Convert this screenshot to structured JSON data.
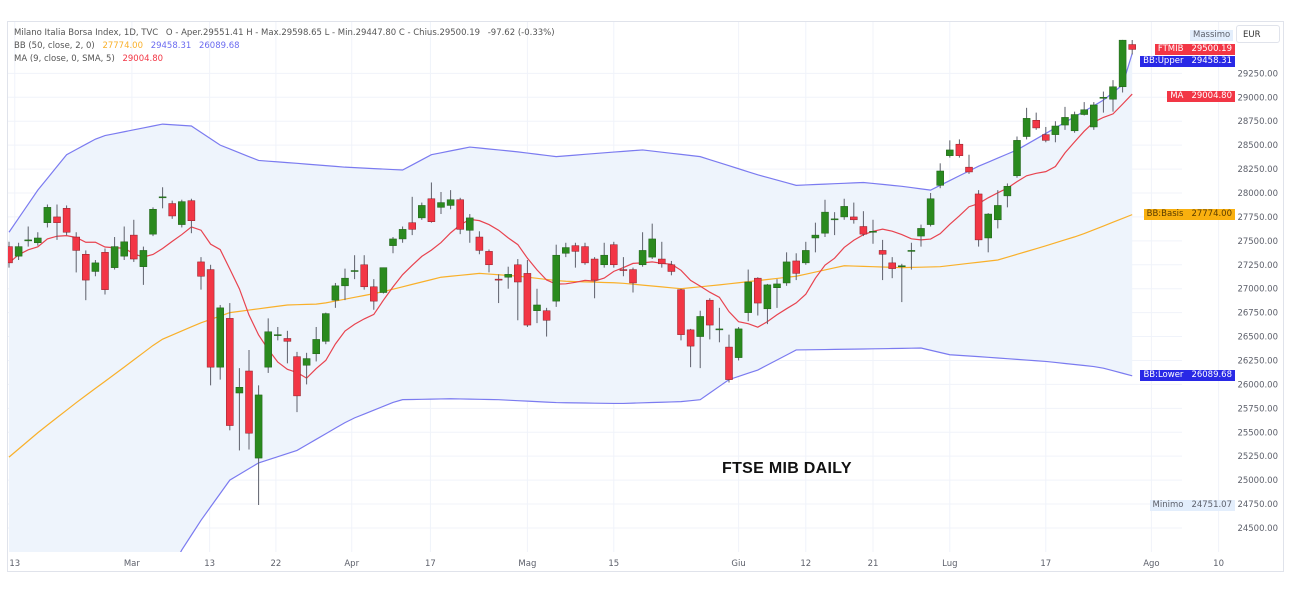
{
  "legend": {
    "symbol_line": "Milano Italia Borsa Index, 1D, TVC",
    "ohlc": "O - Aper.29551.41  H - Max.29598.65  L - Min.29447.80  C - Chius.29500.19",
    "change": "-97.62 (-0.33%)",
    "bb_label": "BB (50, close, 2, 0)",
    "bb_basis": "27774.00",
    "bb_upper": "29458.31",
    "bb_lower": "26089.68",
    "ma_label": "MA (9, close, 0, SMA, 5)",
    "ma_value": "29004.80"
  },
  "price_scale": {
    "currency": "EUR",
    "massimo_label": "Massimo",
    "minimo_label": "Minimo",
    "minimo_value": "24751.07",
    "badges": [
      {
        "name": "FTMIB",
        "value": "29500.19",
        "price": 29500.19,
        "color": "#f23645"
      },
      {
        "name": "BB:Upper",
        "value": "29458.31",
        "price": 29458.31,
        "color": "#2929e6"
      },
      {
        "name": "MA",
        "value": "29004.80",
        "price": 29004.8,
        "color": "#f23645"
      },
      {
        "name": "BB:Basis",
        "value": "27774.00",
        "price": 27774.0,
        "color": "#f9b00f"
      },
      {
        "name": "BB:Lower",
        "value": "26089.68",
        "price": 26089.68,
        "color": "#2929e6"
      }
    ]
  },
  "annotation": "FTSE MIB DAILY",
  "colors": {
    "up": "#2a8a1e",
    "down": "#f23645",
    "ma": "#e8434f",
    "bb_band": "#7b7bf0",
    "bb_basis": "#f9b02a",
    "fill": "#eef4fc"
  },
  "chart_data": {
    "type": "candlestick",
    "title": "FTSE MIB DAILY",
    "ylim": [
      24250,
      29750
    ],
    "yticks": [
      24500,
      24750,
      25000,
      25250,
      25500,
      25750,
      26000,
      26250,
      26500,
      26750,
      27000,
      27250,
      27500,
      27750,
      28000,
      28250,
      28500,
      28750,
      29000,
      29250
    ],
    "time_labels": [
      {
        "label": "13",
        "bar": 0.6
      },
      {
        "label": "Mar",
        "bar": 12.8
      },
      {
        "label": "13",
        "bar": 20.9
      },
      {
        "label": "22",
        "bar": 27.8
      },
      {
        "label": "Apr",
        "bar": 35.7
      },
      {
        "label": "17",
        "bar": 43.9
      },
      {
        "label": "Mag",
        "bar": 54
      },
      {
        "label": "15",
        "bar": 63
      },
      {
        "label": "Giu",
        "bar": 76
      },
      {
        "label": "12",
        "bar": 83
      },
      {
        "label": "21",
        "bar": 90
      },
      {
        "label": "Lug",
        "bar": 98
      },
      {
        "label": "17",
        "bar": 108
      },
      {
        "label": "Ago",
        "bar": 119
      },
      {
        "label": "10",
        "bar": 126
      }
    ],
    "ohlc": [
      [
        27440,
        27490,
        27220,
        27270
      ],
      [
        27340,
        27480,
        27300,
        27440
      ],
      [
        27500,
        27650,
        27440,
        27510
      ],
      [
        27480,
        27590,
        27450,
        27530
      ],
      [
        27690,
        27880,
        27640,
        27850
      ],
      [
        27750,
        27880,
        27510,
        27690
      ],
      [
        27840,
        27870,
        27560,
        27590
      ],
      [
        27540,
        27590,
        27170,
        27400
      ],
      [
        27360,
        27400,
        26880,
        27090
      ],
      [
        27180,
        27300,
        27130,
        27270
      ],
      [
        27380,
        27420,
        26940,
        26990
      ],
      [
        27220,
        27540,
        27200,
        27440
      ],
      [
        27340,
        27650,
        27300,
        27490
      ],
      [
        27560,
        27720,
        27280,
        27310
      ],
      [
        27230,
        27440,
        27040,
        27400
      ],
      [
        27570,
        27850,
        27550,
        27830
      ],
      [
        27950,
        28060,
        27840,
        27960
      ],
      [
        27890,
        27920,
        27730,
        27760
      ],
      [
        27670,
        27930,
        27640,
        27910
      ],
      [
        27920,
        27940,
        27580,
        27710
      ],
      [
        27280,
        27330,
        26990,
        27130
      ],
      [
        27200,
        27250,
        25990,
        26180
      ],
      [
        26180,
        26830,
        26050,
        26800
      ],
      [
        26690,
        26850,
        25520,
        25570
      ],
      [
        25910,
        26170,
        25310,
        25970
      ],
      [
        26140,
        26360,
        25320,
        25490
      ],
      [
        25230,
        25990,
        24740,
        25890
      ],
      [
        26180,
        26690,
        26120,
        26550
      ],
      [
        26520,
        26600,
        26460,
        26520
      ],
      [
        26480,
        26560,
        26220,
        26450
      ],
      [
        26290,
        26340,
        25710,
        25880
      ],
      [
        26200,
        26330,
        26000,
        26270
      ],
      [
        26320,
        26600,
        26240,
        26470
      ],
      [
        26450,
        26750,
        26420,
        26740
      ],
      [
        26880,
        27060,
        26800,
        27030
      ],
      [
        27030,
        27210,
        26880,
        27110
      ],
      [
        27180,
        27350,
        27100,
        27190
      ],
      [
        27250,
        27350,
        26990,
        27020
      ],
      [
        27020,
        27100,
        26780,
        26870
      ],
      [
        26960,
        27220,
        26950,
        27220
      ],
      [
        27450,
        27540,
        27370,
        27520
      ],
      [
        27520,
        27650,
        27480,
        27620
      ],
      [
        27690,
        27960,
        27560,
        27620
      ],
      [
        27740,
        27900,
        27720,
        27870
      ],
      [
        27940,
        28110,
        27690,
        27700
      ],
      [
        27850,
        28010,
        27780,
        27900
      ],
      [
        27870,
        28030,
        27830,
        27930
      ],
      [
        27930,
        27950,
        27570,
        27620
      ],
      [
        27610,
        27780,
        27480,
        27740
      ],
      [
        27540,
        27600,
        27360,
        27400
      ],
      [
        27390,
        27410,
        27170,
        27250
      ],
      [
        27100,
        27150,
        26850,
        27090
      ],
      [
        27120,
        27230,
        27000,
        27150
      ],
      [
        27250,
        27310,
        26670,
        27070
      ],
      [
        27160,
        27300,
        26600,
        26620
      ],
      [
        26770,
        27000,
        26640,
        26830
      ],
      [
        26770,
        26800,
        26500,
        26670
      ],
      [
        26870,
        27460,
        26810,
        27350
      ],
      [
        27370,
        27480,
        27330,
        27430
      ],
      [
        27450,
        27480,
        27220,
        27390
      ],
      [
        27440,
        27480,
        27250,
        27270
      ],
      [
        27310,
        27330,
        26900,
        27090
      ],
      [
        27250,
        27480,
        27220,
        27350
      ],
      [
        27460,
        27490,
        27220,
        27250
      ],
      [
        27200,
        27330,
        27130,
        27190
      ],
      [
        27200,
        27220,
        26960,
        27060
      ],
      [
        27250,
        27590,
        27230,
        27400
      ],
      [
        27330,
        27680,
        27310,
        27520
      ],
      [
        27310,
        27490,
        27220,
        27260
      ],
      [
        27250,
        27290,
        27140,
        27180
      ],
      [
        26990,
        27000,
        26460,
        26520
      ],
      [
        26570,
        26580,
        26180,
        26400
      ],
      [
        26500,
        26770,
        26170,
        26710
      ],
      [
        26880,
        26900,
        26470,
        26620
      ],
      [
        26580,
        26800,
        26440,
        26580
      ],
      [
        26390,
        26520,
        26020,
        26050
      ],
      [
        26280,
        26600,
        26250,
        26580
      ],
      [
        26750,
        27200,
        26660,
        27070
      ],
      [
        27110,
        27120,
        26720,
        26850
      ],
      [
        26790,
        27050,
        26630,
        27040
      ],
      [
        27010,
        27100,
        26800,
        27050
      ],
      [
        27060,
        27380,
        27030,
        27280
      ],
      [
        27290,
        27370,
        27090,
        27160
      ],
      [
        27270,
        27490,
        27250,
        27400
      ],
      [
        27530,
        27690,
        27380,
        27560
      ],
      [
        27580,
        27930,
        27540,
        27800
      ],
      [
        27730,
        27800,
        27560,
        27730
      ],
      [
        27750,
        27940,
        27720,
        27860
      ],
      [
        27750,
        27900,
        27680,
        27720
      ],
      [
        27650,
        27810,
        27550,
        27570
      ],
      [
        27600,
        27720,
        27470,
        27600
      ],
      [
        27400,
        27510,
        27090,
        27360
      ],
      [
        27270,
        27330,
        27110,
        27210
      ],
      [
        27240,
        27260,
        26860,
        27240
      ],
      [
        27400,
        27480,
        27200,
        27400
      ],
      [
        27550,
        27670,
        27440,
        27630
      ],
      [
        27670,
        28000,
        27650,
        27940
      ],
      [
        28080,
        28310,
        28050,
        28230
      ],
      [
        28390,
        28550,
        28370,
        28450
      ],
      [
        28510,
        28560,
        28370,
        28390
      ],
      [
        28270,
        28400,
        28200,
        28220
      ],
      [
        27990,
        28030,
        27440,
        27510
      ],
      [
        27530,
        27790,
        27380,
        27780
      ],
      [
        27720,
        28030,
        27630,
        27870
      ],
      [
        27970,
        28100,
        27850,
        28070
      ],
      [
        28180,
        28590,
        28160,
        28550
      ],
      [
        28590,
        28890,
        28560,
        28780
      ],
      [
        28760,
        28840,
        28660,
        28680
      ],
      [
        28610,
        28690,
        28530,
        28550
      ],
      [
        28610,
        28750,
        28530,
        28700
      ],
      [
        28710,
        28900,
        28660,
        28790
      ],
      [
        28650,
        28850,
        28630,
        28820
      ],
      [
        28820,
        28950,
        28810,
        28870
      ],
      [
        28690,
        28950,
        28660,
        28920
      ],
      [
        28990,
        29060,
        28840,
        29000
      ],
      [
        28980,
        29180,
        28850,
        29110
      ],
      [
        29110,
        29600,
        29050,
        29597
      ],
      [
        29551.41,
        29598.65,
        29447.8,
        29500.19
      ]
    ],
    "bb_upper": [
      [
        0,
        27590
      ],
      [
        3,
        28030
      ],
      [
        6,
        28400
      ],
      [
        9.5,
        28590
      ],
      [
        16,
        28720
      ],
      [
        19,
        28700
      ],
      [
        22,
        28500
      ],
      [
        26,
        28340
      ],
      [
        30,
        28310
      ],
      [
        35,
        28270
      ],
      [
        41,
        28240
      ],
      [
        44,
        28400
      ],
      [
        48,
        28480
      ],
      [
        53,
        28430
      ],
      [
        57,
        28380
      ],
      [
        62,
        28420
      ],
      [
        66,
        28450
      ],
      [
        72,
        28380
      ],
      [
        78,
        28190
      ],
      [
        82,
        28080
      ],
      [
        89,
        28110
      ],
      [
        93,
        28070
      ],
      [
        96,
        28030
      ],
      [
        101,
        28280
      ],
      [
        105,
        28450
      ],
      [
        109,
        28680
      ],
      [
        114,
        28970
      ],
      [
        116,
        29130
      ],
      [
        117,
        29458
      ]
    ],
    "bb_lower": [
      [
        16,
        23900
      ],
      [
        18,
        24270
      ],
      [
        20,
        24580
      ],
      [
        23,
        25000
      ],
      [
        26,
        25180
      ],
      [
        30,
        25310
      ],
      [
        35.5,
        25630
      ],
      [
        40.7,
        25840
      ],
      [
        46,
        25850
      ],
      [
        51,
        25840
      ],
      [
        57,
        25810
      ],
      [
        63.6,
        25800
      ],
      [
        70,
        25820
      ],
      [
        72,
        25840
      ],
      [
        75,
        26050
      ],
      [
        78,
        26150
      ],
      [
        82,
        26360
      ],
      [
        89,
        26370
      ],
      [
        95,
        26380
      ],
      [
        98,
        26310
      ],
      [
        101,
        26290
      ],
      [
        108,
        26240
      ],
      [
        113.6,
        26180
      ],
      [
        117,
        26090
      ]
    ],
    "bb_basis": [
      [
        0,
        25240
      ],
      [
        3.3,
        25520
      ],
      [
        7.4,
        25840
      ],
      [
        11.6,
        26150
      ],
      [
        15.7,
        26460
      ],
      [
        19.9,
        26640
      ],
      [
        23,
        26750
      ],
      [
        29,
        26830
      ],
      [
        32.4,
        26840
      ],
      [
        38.6,
        26960
      ],
      [
        45,
        27120
      ],
      [
        49,
        27160
      ],
      [
        53.2,
        27130
      ],
      [
        57.4,
        27080
      ],
      [
        63.6,
        27060
      ],
      [
        70,
        27000
      ],
      [
        74,
        27040
      ],
      [
        82,
        27130
      ],
      [
        87,
        27240
      ],
      [
        93,
        27220
      ],
      [
        97,
        27230
      ],
      [
        103,
        27300
      ],
      [
        107.4,
        27430
      ],
      [
        111.6,
        27560
      ],
      [
        117,
        27774
      ]
    ],
    "ma_period": 9
  }
}
